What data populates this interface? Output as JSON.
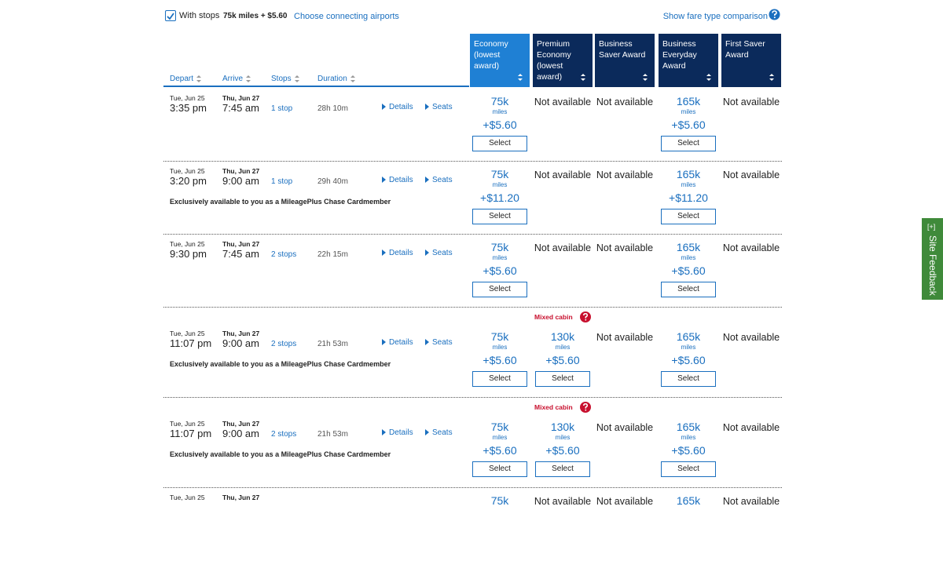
{
  "top_bar": {
    "checkbox_label": "With stops",
    "summary": "75k miles + $5.60",
    "link": "Choose connecting airports",
    "compare_link": "Show fare type comparison"
  },
  "sort_headers": [
    "Depart",
    "Arrive",
    "Stops",
    "Duration"
  ],
  "fare_headers": [
    "Economy (lowest award)",
    "Premium Economy (lowest award)",
    "Business Saver Award",
    "Business Everyday Award",
    "First Saver Award"
  ],
  "rows": [
    {
      "depart_date": "Tue, Jun 25",
      "depart_time": "3:35 pm",
      "arrive_date": "Thu, Jun 27",
      "arrive_time": "7:45 am",
      "stops": "1 stop",
      "duration": "28h 10m",
      "details": "Details",
      "seats": "Seats",
      "fares": [
        {
          "miles": "75k",
          "unit": "miles",
          "price": "+$5.60",
          "button": "Select"
        },
        {
          "status": "Not available"
        },
        {
          "status": "Not available"
        },
        {
          "miles": "165k",
          "unit": "miles",
          "price": "+$5.60",
          "button": "Select"
        },
        {
          "status": "Not available"
        }
      ]
    },
    {
      "depart_date": "Tue, Jun 25",
      "depart_time": "3:20 pm",
      "arrive_date": "Thu, Jun 27",
      "arrive_time": "9:00 am",
      "stops": "1 stop",
      "duration": "29h 40m",
      "details": "Details",
      "seats": "Seats",
      "note": "Exclusively available to you as a MileagePlus Chase Cardmember",
      "fares": [
        {
          "miles": "75k",
          "unit": "miles",
          "price": "+$11.20",
          "button": "Select"
        },
        {
          "status": "Not available"
        },
        {
          "status": "Not available"
        },
        {
          "miles": "165k",
          "unit": "miles",
          "price": "+$11.20",
          "button": "Select"
        },
        {
          "status": "Not available"
        }
      ]
    },
    {
      "depart_date": "Tue, Jun 25",
      "depart_time": "9:30 pm",
      "arrive_date": "Thu, Jun 27",
      "arrive_time": "7:45 am",
      "stops": "2 stops",
      "duration": "22h 15m",
      "details": "Details",
      "seats": "Seats",
      "fares": [
        {
          "miles": "75k",
          "unit": "miles",
          "price": "+$5.60",
          "button": "Select"
        },
        {
          "status": "Not available"
        },
        {
          "status": "Not available"
        },
        {
          "miles": "165k",
          "unit": "miles",
          "price": "+$5.60",
          "button": "Select"
        },
        {
          "status": "Not available"
        }
      ]
    },
    {
      "mixed_cabin": "Mixed cabin",
      "depart_date": "Tue, Jun 25",
      "depart_time": "11:07 pm",
      "arrive_date": "Thu, Jun 27",
      "arrive_time": "9:00 am",
      "stops": "2 stops",
      "duration": "21h 53m",
      "details": "Details",
      "seats": "Seats",
      "note": "Exclusively available to you as a MileagePlus Chase Cardmember",
      "fares": [
        {
          "miles": "75k",
          "unit": "miles",
          "price": "+$5.60",
          "button": "Select"
        },
        {
          "miles": "130k",
          "unit": "miles",
          "price": "+$5.60",
          "button": "Select"
        },
        {
          "status": "Not available"
        },
        {
          "miles": "165k",
          "unit": "miles",
          "price": "+$5.60",
          "button": "Select"
        },
        {
          "status": "Not available"
        }
      ]
    },
    {
      "mixed_cabin": "Mixed cabin",
      "depart_date": "Tue, Jun 25",
      "depart_time": "11:07 pm",
      "arrive_date": "Thu, Jun 27",
      "arrive_time": "9:00 am",
      "stops": "2 stops",
      "duration": "21h 53m",
      "details": "Details",
      "seats": "Seats",
      "note": "Exclusively available to you as a MileagePlus Chase Cardmember",
      "fares": [
        {
          "miles": "75k",
          "unit": "miles",
          "price": "+$5.60",
          "button": "Select"
        },
        {
          "miles": "130k",
          "unit": "miles",
          "price": "+$5.60",
          "button": "Select"
        },
        {
          "status": "Not available"
        },
        {
          "miles": "165k",
          "unit": "miles",
          "price": "+$5.60",
          "button": "Select"
        },
        {
          "status": "Not available"
        }
      ]
    },
    {
      "depart_date": "Tue, Jun 25",
      "arrive_date": "Thu, Jun 27",
      "fares": [
        {
          "miles": "75k"
        },
        {
          "status": "Not available"
        },
        {
          "status": "Not available"
        },
        {
          "miles": "165k"
        },
        {
          "status": "Not available"
        }
      ]
    }
  ],
  "feedback": {
    "icon": "[+]",
    "label": "Site Feedback"
  }
}
